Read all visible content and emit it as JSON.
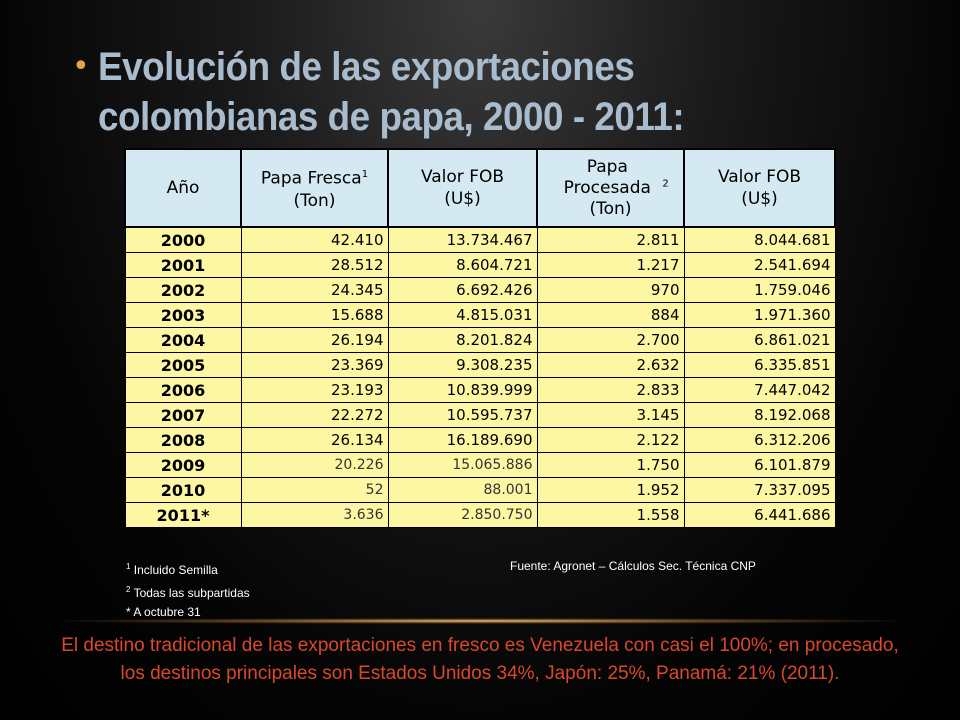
{
  "slide": {
    "title": "Evolución de las exportaciones colombianas de papa, 2000 - 2011:",
    "bullet": "•"
  },
  "table": {
    "headers": [
      {
        "label": "Año",
        "sup": ""
      },
      {
        "label": "Papa Fresca",
        "sup": "1",
        "sub": "(Ton)"
      },
      {
        "label": "Valor FOB",
        "sup": "",
        "sub": "(U$)"
      },
      {
        "label": "Papa Procesada",
        "sup": "2",
        "sub": "(Ton)"
      },
      {
        "label": "Valor FOB",
        "sup": "",
        "sub": "(U$)"
      }
    ],
    "rows": [
      [
        "2000",
        "42.410",
        "13.734.467",
        "2.811",
        "8.044.681"
      ],
      [
        "2001",
        "28.512",
        "8.604.721",
        "1.217",
        "2.541.694"
      ],
      [
        "2002",
        "24.345",
        "6.692.426",
        "970",
        "1.759.046"
      ],
      [
        "2003",
        "15.688",
        "4.815.031",
        "884",
        "1.971.360"
      ],
      [
        "2004",
        "26.194",
        "8.201.824",
        "2.700",
        "6.861.021"
      ],
      [
        "2005",
        "23.369",
        "9.308.235",
        "2.632",
        "6.335.851"
      ],
      [
        "2006",
        "23.193",
        "10.839.999",
        "2.833",
        "7.447.042"
      ],
      [
        "2007",
        "22.272",
        "10.595.737",
        "3.145",
        "8.192.068"
      ],
      [
        "2008",
        "26.134",
        "16.189.690",
        "2.122",
        "6.312.206"
      ],
      [
        "2009",
        "20.226",
        "15.065.886",
        "1.750",
        "6.101.879"
      ],
      [
        "2010",
        "52",
        "88.001",
        "1.952",
        "7.337.095"
      ],
      [
        "2011*",
        "3.636",
        "2.850.750",
        "1.558",
        "6.441.686"
      ]
    ]
  },
  "notes": {
    "note1_sup": "1",
    "note1": "Incluido Semilla",
    "note2_sup": "2",
    "note2": "Todas las subpartidas",
    "note3": "* A octubre 31",
    "source": "Fuente: Agronet – Cálculos Sec. Técnica CNP"
  },
  "summary": "El destino tradicional de las exportaciones en fresco es Venezuela con casi el 100%; en procesado, los destinos principales son Estados Unidos 34%, Japón: 25%, Panamá: 21% (2011).",
  "colors": {
    "title": "#a9bccd",
    "bullet": "#e8a33a",
    "header_bg": "#d4e9f2",
    "cell_bg": "#fdf7a4",
    "summary": "#d9482c"
  }
}
